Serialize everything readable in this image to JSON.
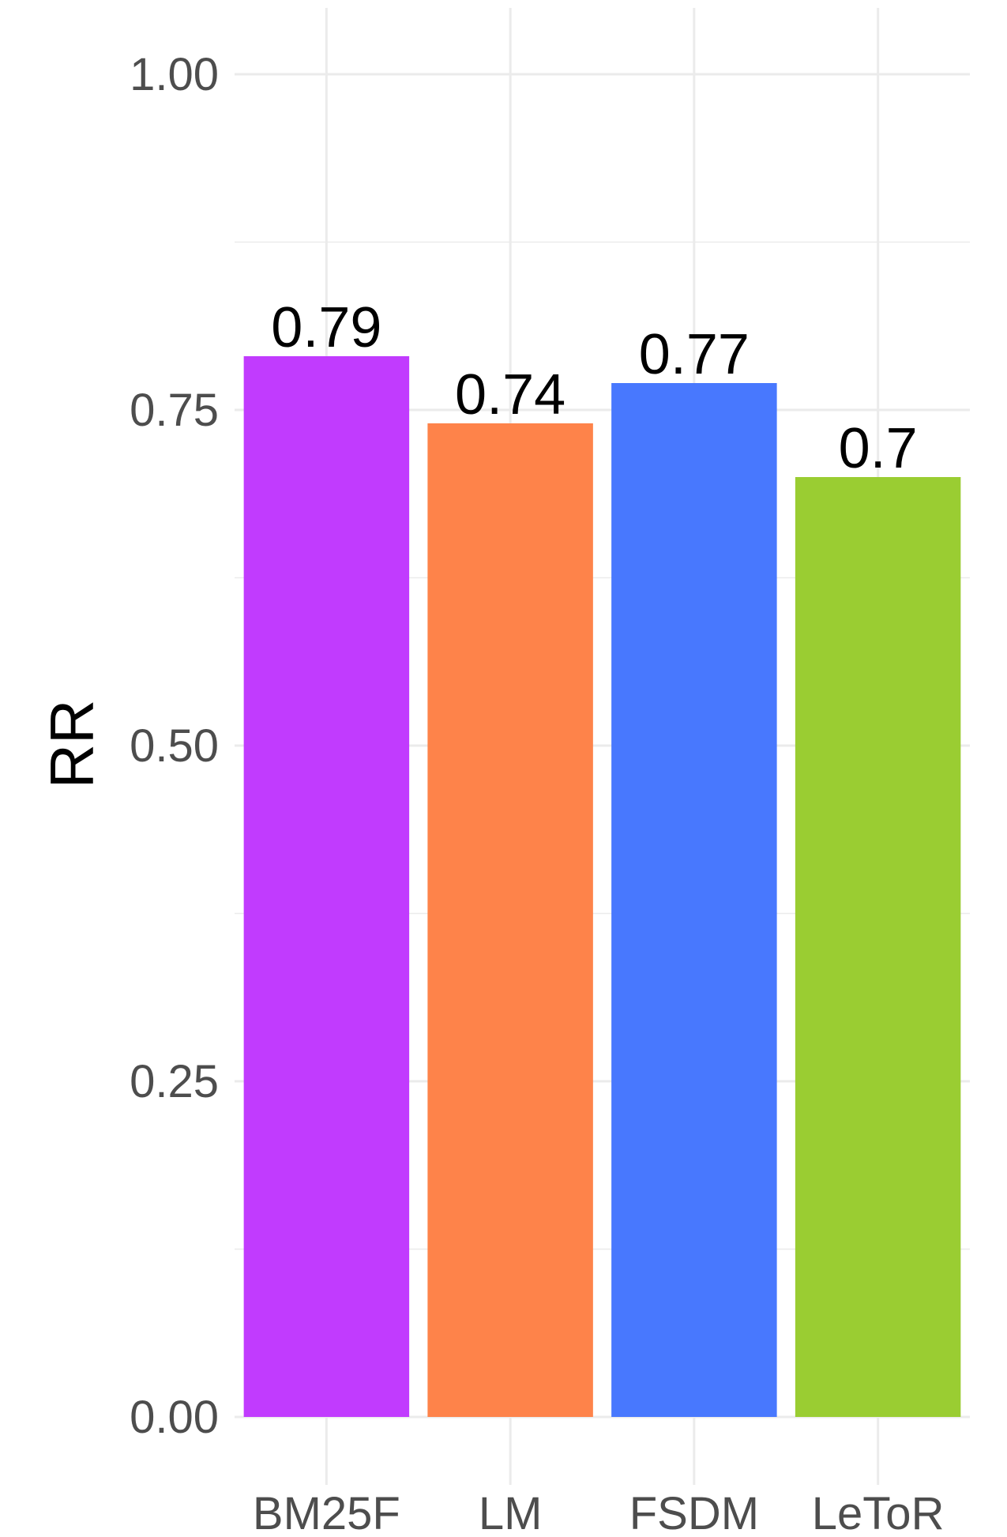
{
  "chart_data": {
    "type": "bar",
    "categories": [
      "BM25F",
      "LM",
      "FSDM",
      "LeToR"
    ],
    "values": [
      0.79,
      0.74,
      0.77,
      0.7
    ],
    "data_labels": [
      "0.79",
      "0.74",
      "0.77",
      "0.7"
    ],
    "colors": [
      "#c13bfe",
      "#fe834a",
      "#4878fe",
      "#9acd32"
    ],
    "title": "",
    "xlabel": "",
    "ylabel": "RR",
    "ylim": [
      0,
      1
    ],
    "yticks": [
      0,
      0.25,
      0.5,
      0.75,
      1
    ],
    "ytick_labels": [
      "0.00",
      "0.25",
      "0.50",
      "0.75",
      "1.00"
    ],
    "grid": true,
    "legend": "none"
  }
}
